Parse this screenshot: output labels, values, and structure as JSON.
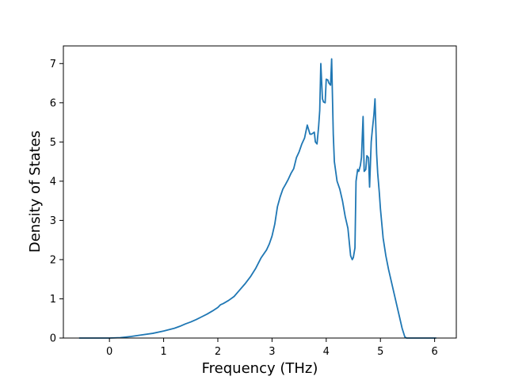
{
  "chart_data": {
    "type": "line",
    "title": "",
    "xlabel": "Frequency (THz)",
    "ylabel": "Density of States",
    "xlim": [
      -0.85,
      6.4
    ],
    "ylim": [
      0,
      7.45
    ],
    "grid": false,
    "legend": "none",
    "x_ticks": [
      0,
      1,
      2,
      3,
      4,
      5,
      6
    ],
    "y_ticks": [
      0,
      1,
      2,
      3,
      4,
      5,
      6,
      7
    ],
    "color": "#1f77b4",
    "series": [
      {
        "x": [
          -0.56,
          -0.3,
          0.0,
          0.2,
          0.4,
          0.6,
          0.8,
          1.0,
          1.2,
          1.3,
          1.4,
          1.5,
          1.6,
          1.7,
          1.8,
          1.9,
          2.0,
          2.05,
          2.1,
          2.2,
          2.3,
          2.4,
          2.5,
          2.6,
          2.7,
          2.8,
          2.9,
          2.95,
          3.0,
          3.05,
          3.1,
          3.15,
          3.2,
          3.25,
          3.3,
          3.35,
          3.4,
          3.45,
          3.5,
          3.55,
          3.6,
          3.65,
          3.7,
          3.73,
          3.75,
          3.78,
          3.8,
          3.83,
          3.86,
          3.88,
          3.9,
          3.93,
          3.95,
          3.98,
          4.0,
          4.03,
          4.05,
          4.08,
          4.1,
          4.13,
          4.15,
          4.2,
          4.25,
          4.3,
          4.35,
          4.4,
          4.45,
          4.48,
          4.5,
          4.53,
          4.55,
          4.58,
          4.6,
          4.63,
          4.65,
          4.68,
          4.7,
          4.73,
          4.75,
          4.78,
          4.8,
          4.83,
          4.85,
          4.88,
          4.9,
          4.93,
          4.95,
          4.98,
          5.0,
          5.05,
          5.1,
          5.15,
          5.2,
          5.25,
          5.3,
          5.35,
          5.4,
          5.45,
          5.48,
          5.5,
          5.52,
          5.55,
          5.6,
          5.8,
          6.0,
          6.03
        ],
        "y": [
          0,
          0,
          0,
          0.01,
          0.04,
          0.08,
          0.12,
          0.18,
          0.25,
          0.3,
          0.36,
          0.41,
          0.47,
          0.54,
          0.61,
          0.69,
          0.78,
          0.85,
          0.88,
          0.96,
          1.06,
          1.22,
          1.38,
          1.56,
          1.78,
          2.05,
          2.25,
          2.4,
          2.6,
          2.9,
          3.35,
          3.6,
          3.8,
          3.92,
          4.05,
          4.2,
          4.32,
          4.6,
          4.75,
          4.95,
          5.1,
          5.43,
          5.2,
          5.2,
          5.22,
          5.25,
          5.0,
          4.95,
          5.4,
          5.8,
          7.0,
          6.1,
          6.02,
          6.0,
          6.6,
          6.58,
          6.5,
          6.45,
          7.12,
          5.2,
          4.5,
          4.0,
          3.8,
          3.5,
          3.1,
          2.8,
          2.1,
          2.0,
          2.05,
          2.3,
          4.0,
          4.3,
          4.25,
          4.4,
          4.6,
          5.65,
          4.25,
          4.3,
          4.65,
          4.6,
          3.85,
          5.0,
          5.3,
          5.7,
          6.1,
          4.7,
          4.2,
          3.7,
          3.3,
          2.55,
          2.1,
          1.75,
          1.45,
          1.15,
          0.85,
          0.55,
          0.25,
          0.03,
          0,
          0,
          0,
          0,
          0,
          0,
          0,
          0
        ]
      }
    ]
  }
}
